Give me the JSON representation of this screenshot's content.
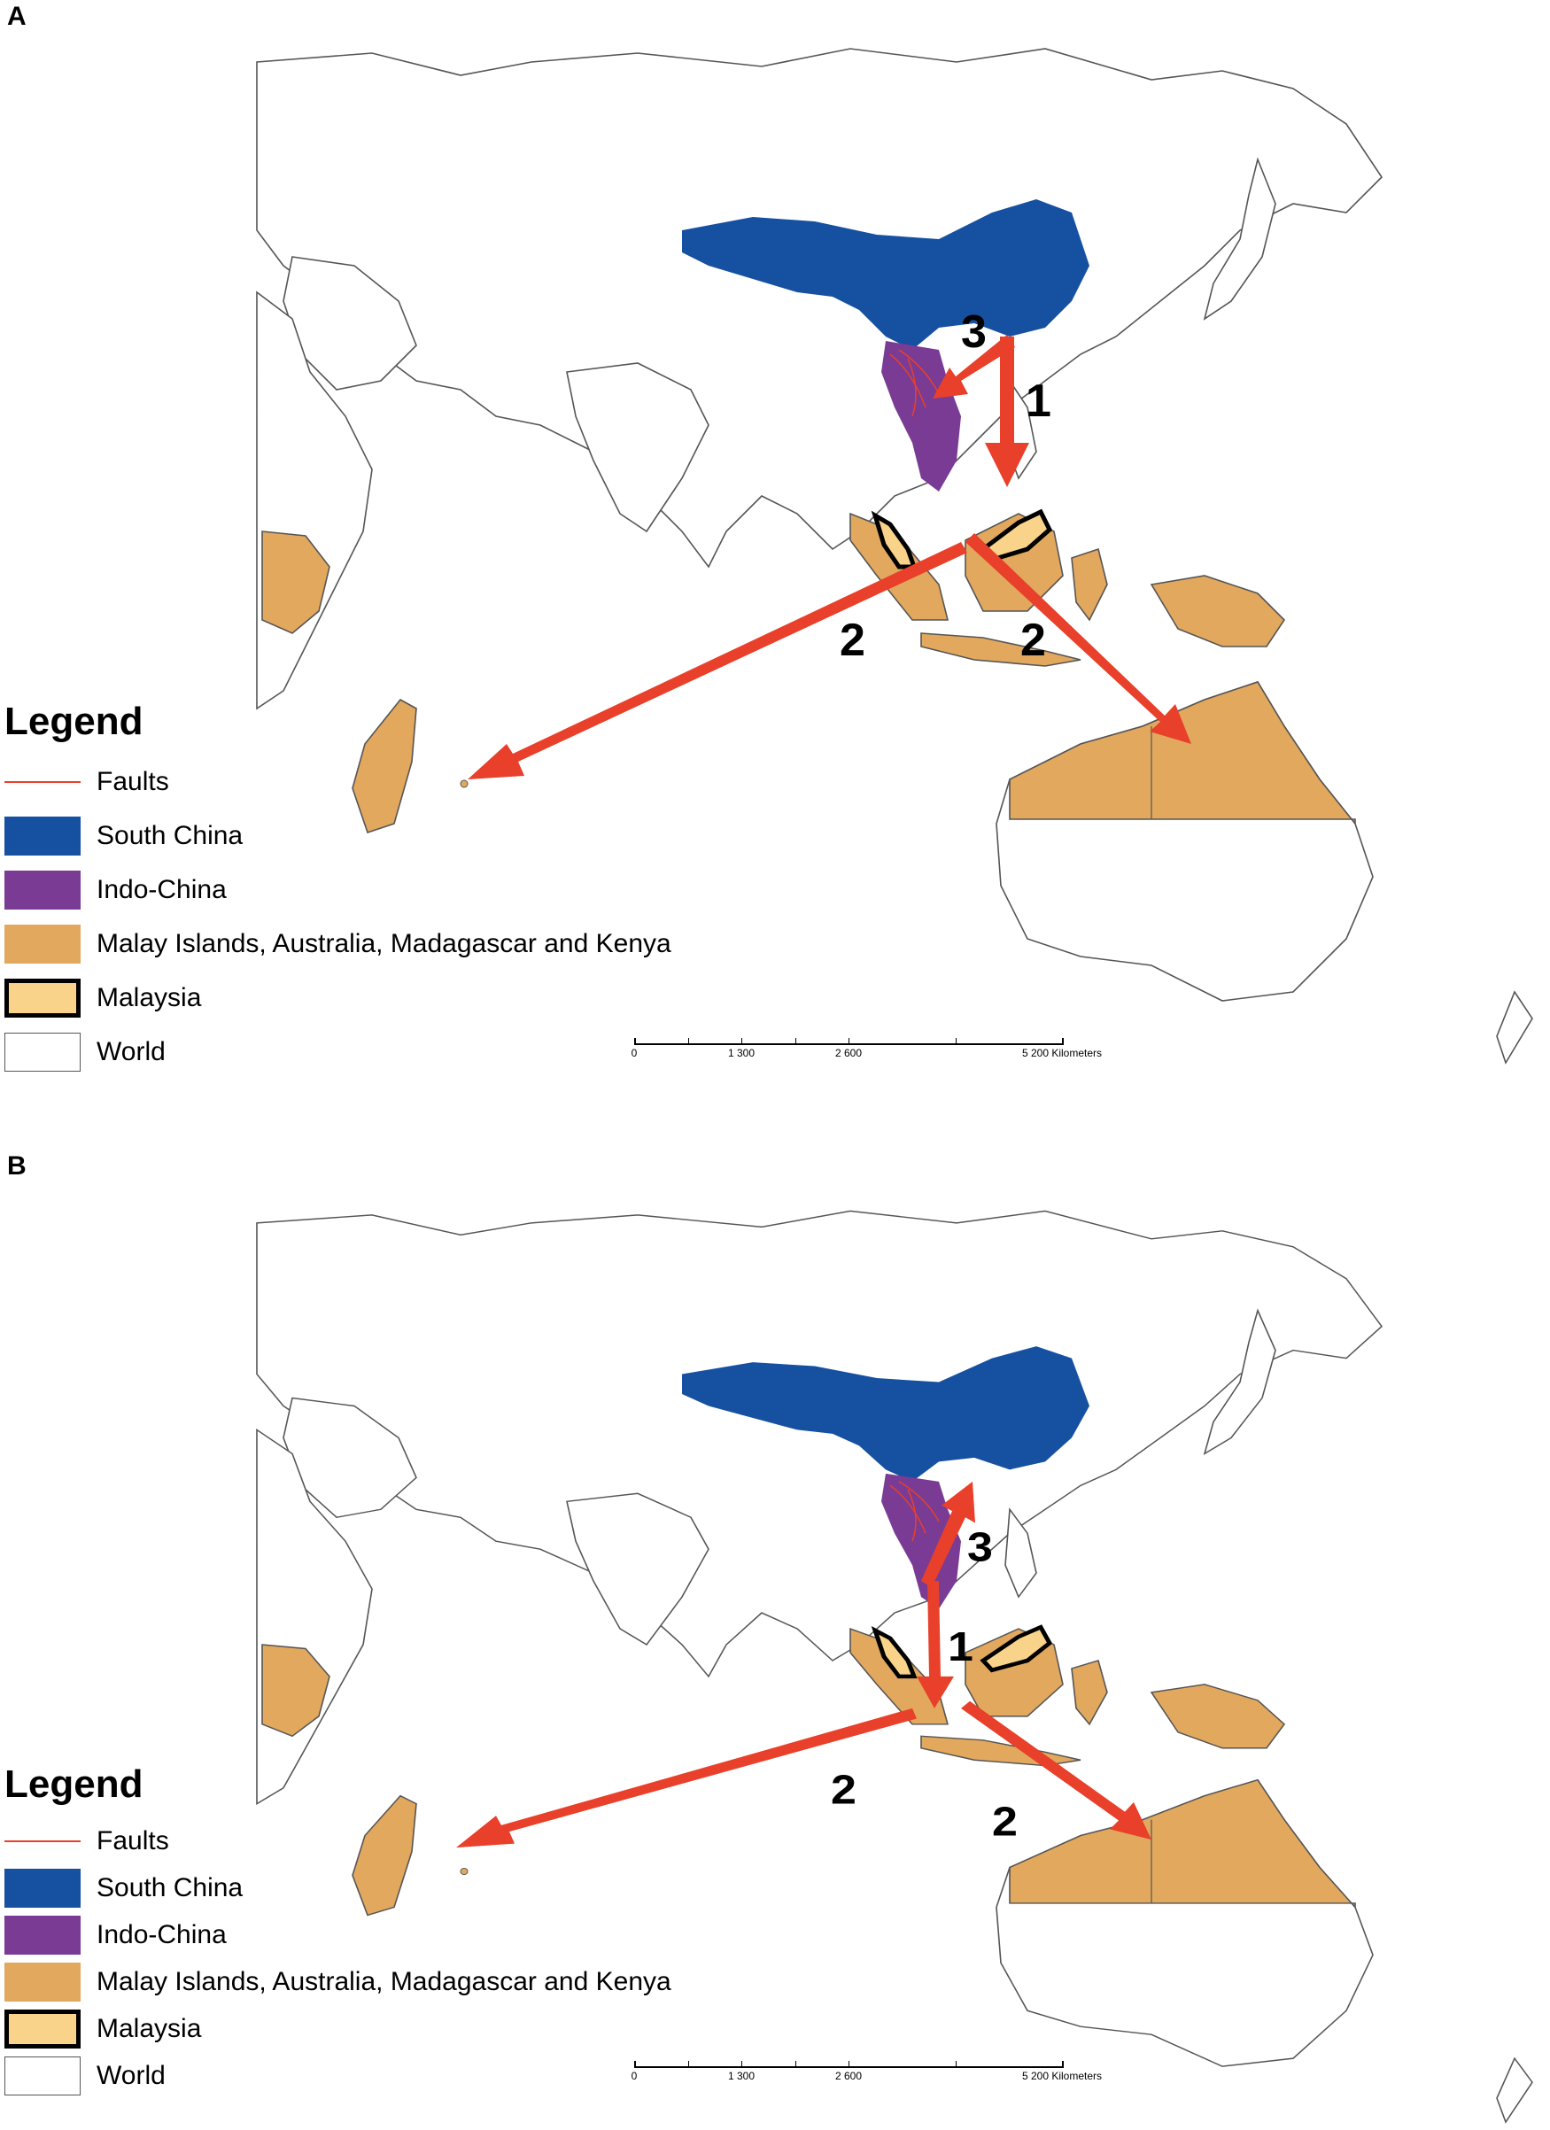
{
  "colors": {
    "south_china": "#1650a0",
    "indo_china": "#7a3b94",
    "malay": "#e2a85e",
    "malaysia": "#f9d38a",
    "world_fill": "#ffffff",
    "outline": "#555555",
    "arrow": "#e8402a",
    "faults": "#e8402a"
  },
  "legend": {
    "title": "Legend",
    "items": [
      {
        "key": "faults",
        "label": "Faults"
      },
      {
        "key": "south_china",
        "label": "South China"
      },
      {
        "key": "indo_china",
        "label": "Indo-China"
      },
      {
        "key": "malay",
        "label": "Malay Islands, Australia, Madagascar and Kenya"
      },
      {
        "key": "malaysia",
        "label": "Malaysia"
      },
      {
        "key": "world",
        "label": "World"
      }
    ]
  },
  "scale": {
    "labels": [
      "0",
      "1 300",
      "2 600",
      "5 200 Kilometers"
    ]
  },
  "panels": [
    {
      "letter": "A",
      "arrows": [
        {
          "label": "1"
        },
        {
          "label": "2"
        },
        {
          "label": "2"
        },
        {
          "label": "3"
        }
      ]
    },
    {
      "letter": "B",
      "arrows": [
        {
          "label": "1"
        },
        {
          "label": "2"
        },
        {
          "label": "2"
        },
        {
          "label": "3"
        }
      ]
    }
  ]
}
